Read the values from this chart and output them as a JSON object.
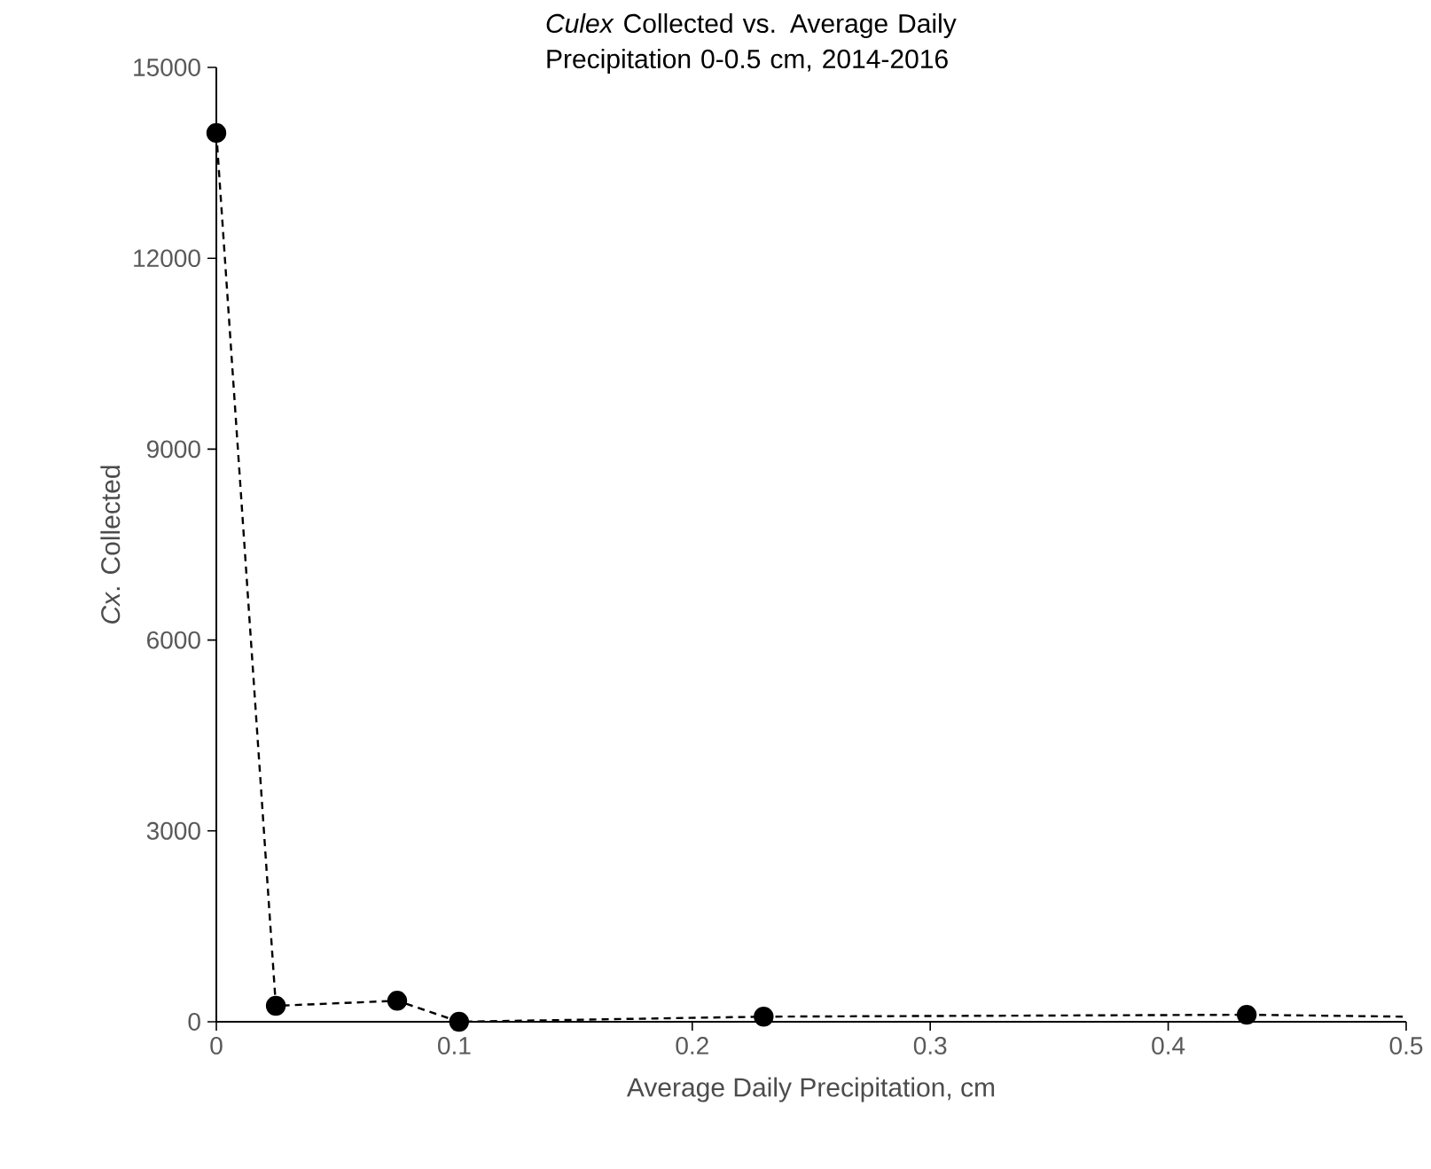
{
  "chart_data": {
    "type": "line",
    "title": "*Culex* Collected vs. Average Daily Precipitation 0-0.5 cm, 2014-2016",
    "xlabel": "Average Daily Precipitation, cm",
    "ylabel": "*Cx*. Collected",
    "series": [
      {
        "x": [
          0,
          0.025,
          0.076,
          0.102,
          0.23,
          0.433
        ],
        "values": [
          13970,
          250,
          330,
          0,
          80,
          110
        ],
        "color": "#000000",
        "marker": "circle",
        "line_style": "dashed"
      },
      {
        "x": [
          0.433,
          0.5
        ],
        "values": [
          110,
          80
        ],
        "color": "#000000",
        "marker": "none",
        "line_style": "dashed"
      }
    ],
    "xlim": [
      0,
      0.5
    ],
    "ylim": [
      0,
      15000
    ],
    "xticks": [
      0,
      0.1,
      0.2,
      0.3,
      0.4,
      0.5
    ],
    "yticks": [
      0,
      3000,
      6000,
      9000,
      12000,
      15000
    ]
  }
}
